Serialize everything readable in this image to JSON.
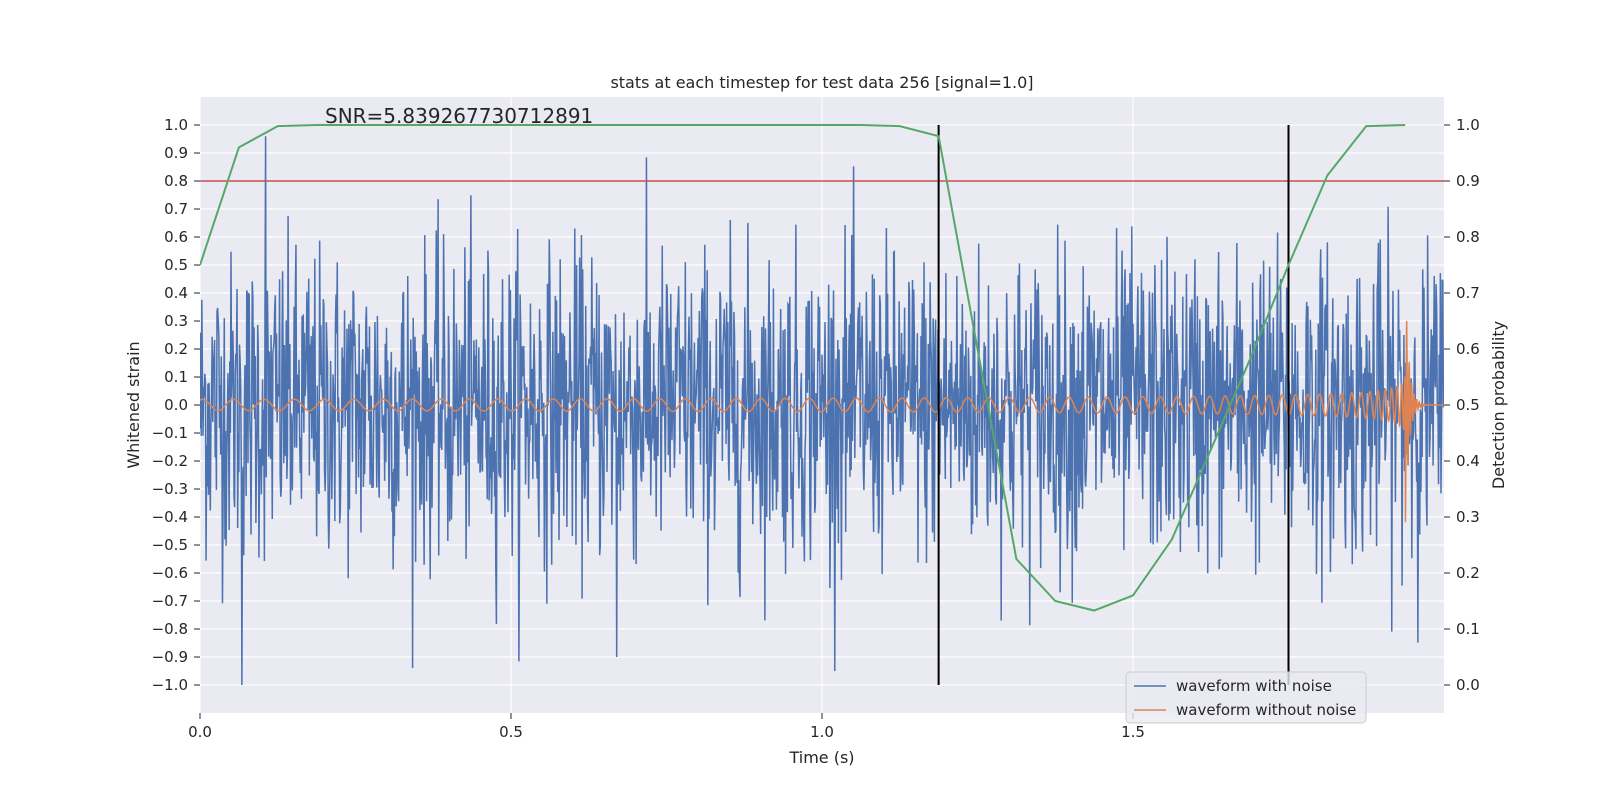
{
  "chart_data": {
    "type": "line",
    "title": "stats at each timestep for test data 256 [signal=1.0]",
    "xlabel": "Time (s)",
    "ylabel": "Whitened strain",
    "y2label": "Detection probability",
    "xlim": [
      0.0,
      2.0
    ],
    "ylim": [
      -1.1,
      1.1
    ],
    "y2lim": [
      -0.05,
      1.05
    ],
    "xticks": [
      0.0,
      0.5,
      1.0,
      1.5
    ],
    "xtick_labels": [
      "0.0",
      "0.5",
      "1.0",
      "1.5"
    ],
    "yticks": [
      1.0,
      0.9,
      0.8,
      0.7,
      0.6,
      0.5,
      0.4,
      0.3,
      0.2,
      0.1,
      0.0,
      -0.1,
      -0.2,
      -0.3,
      -0.4,
      -0.5,
      -0.6,
      -0.7,
      -0.8,
      -0.9,
      -1.0
    ],
    "ytick_labels": [
      "1.0",
      "0.9",
      "0.8",
      "0.7",
      "0.6",
      "0.5",
      "0.4",
      "0.3",
      "0.2",
      "0.1",
      "0.0",
      "−0.1",
      "−0.2",
      "−0.3",
      "−0.4",
      "−0.5",
      "−0.6",
      "−0.7",
      "−0.8",
      "−0.9",
      "−1.0"
    ],
    "y2ticks": [
      1.0,
      0.9,
      0.8,
      0.7,
      0.6,
      0.5,
      0.4,
      0.3,
      0.2,
      0.1,
      0.0
    ],
    "y2tick_labels": [
      "1.0",
      "0.9",
      "0.8",
      "0.7",
      "0.6",
      "0.5",
      "0.4",
      "0.3",
      "0.2",
      "0.1",
      "0.0"
    ],
    "annotation": "SNR=5.839267730712891",
    "series": [
      {
        "name": "waveform with noise",
        "color": "#4c72b0",
        "axis": "left",
        "description": "whitened noisy strain, 2048 samples over 2 s, amplitude roughly within [-1, 1]",
        "n_samples": 2048,
        "extremes": [
          {
            "x": 0.105,
            "y": 0.96
          },
          {
            "x": 0.067,
            "y": -1.0
          },
          {
            "x": 0.67,
            "y": -0.9
          }
        ]
      },
      {
        "name": "waveform without noise",
        "color": "#dd8452",
        "axis": "left",
        "description": "clean chirp waveform, small amplitude growing toward merger near t=1.94 s",
        "merger_time": 1.94,
        "start_amplitude": 0.02,
        "peak_amplitude": 0.3
      },
      {
        "name": "detection probability",
        "color": "#55a868",
        "axis": "right",
        "x": [
          0.0,
          0.0625,
          0.125,
          0.1875,
          0.25,
          0.3125,
          0.375,
          0.4375,
          0.5,
          0.5625,
          0.625,
          0.6875,
          0.75,
          0.8125,
          0.875,
          0.9375,
          1.0,
          1.0625,
          1.125,
          1.1875,
          1.25,
          1.3125,
          1.375,
          1.4375,
          1.5,
          1.5625,
          1.625,
          1.6875,
          1.75,
          1.8125,
          1.875,
          1.9375
        ],
        "values": [
          0.75,
          0.96,
          0.998,
          1.0,
          1.0,
          1.0,
          1.0,
          1.0,
          1.0,
          1.0,
          1.0,
          1.0,
          1.0,
          1.0,
          1.0,
          1.0,
          1.0,
          1.0,
          0.998,
          0.98,
          0.6,
          0.225,
          0.15,
          0.133,
          0.16,
          0.26,
          0.42,
          0.58,
          0.75,
          0.91,
          0.998,
          1.0
        ]
      }
    ],
    "hlines": [
      {
        "y": 0.8,
        "axis": "left",
        "color": "#c44e52"
      }
    ],
    "vlines": [
      {
        "x": 1.1875,
        "color": "#000000"
      },
      {
        "x": 1.75,
        "color": "#000000"
      }
    ],
    "legend": {
      "placement": "lower-right",
      "entries": [
        "waveform with noise",
        "waveform without noise"
      ]
    },
    "grid": true
  }
}
